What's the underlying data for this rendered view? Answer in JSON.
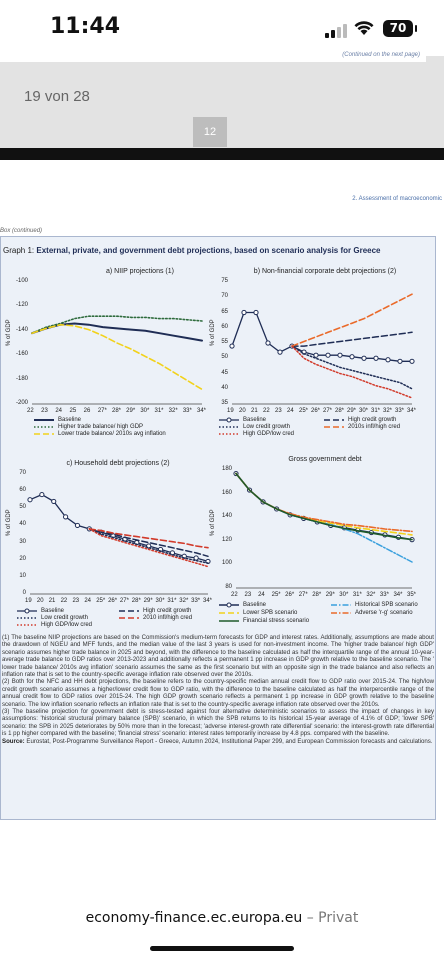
{
  "status": {
    "time": "11:44",
    "battery": "70"
  },
  "viewer": {
    "continued_next": "(Continued on the next page)",
    "page_counter": "19 von 28",
    "page_number": "12"
  },
  "header": {
    "section": "2. Assessment of macroeconomic",
    "box_label": "Box (continued)"
  },
  "graph": {
    "prefix": "Graph 1:",
    "title": "External, private, and government debt projections, based on scenario analysis for Greece"
  },
  "panels": {
    "a": {
      "title": "a) NIIP projections (1)",
      "ylabel": "% of GDP",
      "yticks": [
        "-100",
        "-120",
        "-140",
        "-160",
        "-180",
        "-200"
      ],
      "xticks": [
        "22",
        "23",
        "24",
        "25",
        "26",
        "27*",
        "28*",
        "29*",
        "30*",
        "31*",
        "32*",
        "33*",
        "34*"
      ],
      "legend": [
        "Baseline",
        "Higher trade balance/ high GDP",
        "Lower trade balance/ 2010s avg inflation"
      ]
    },
    "b": {
      "title": "b) Non-financial corporate debt projections (2)",
      "ylabel": "% of GDP",
      "yticks": [
        "75",
        "70",
        "65",
        "60",
        "55",
        "50",
        "45",
        "40",
        "35"
      ],
      "xticks": [
        "19",
        "20",
        "21",
        "22",
        "23",
        "24",
        "25*",
        "26*",
        "27*",
        "28*",
        "29*",
        "30*",
        "31*",
        "32*",
        "33*",
        "34*"
      ],
      "legend": [
        "Baseline",
        "High credit growth",
        "Low credit growth",
        "2010s infl/high cred",
        "High GDP/low cred"
      ]
    },
    "c": {
      "title": "c) Household debt projections (2)",
      "ylabel": "% of GDP",
      "yticks": [
        "70",
        "60",
        "50",
        "40",
        "30",
        "20",
        "10",
        "0"
      ],
      "xticks": [
        "19",
        "20",
        "21",
        "22",
        "23",
        "24",
        "25*",
        "26*",
        "27*",
        "28*",
        "29*",
        "30*",
        "31*",
        "32*",
        "33*",
        "34*"
      ],
      "legend": [
        "Baseline",
        "High credit growth",
        "Low credit growth",
        "2010 infl/high cred",
        "High GDP/low cred"
      ]
    },
    "d": {
      "title": "Gross government debt",
      "ylabel": "% of GDP",
      "yticks": [
        "180",
        "160",
        "140",
        "120",
        "100",
        "80"
      ],
      "xticks": [
        "22",
        "23",
        "24",
        "25*",
        "26*",
        "27*",
        "28*",
        "29*",
        "30*",
        "31*",
        "32*",
        "33*",
        "34*",
        "35*"
      ],
      "legend": [
        "Baseline",
        "Historical SPB scenario",
        "Lower SPB scenario",
        "Adverse 'r-g' scenario",
        "Financial stress scenario"
      ]
    }
  },
  "chart_data": [
    {
      "type": "line",
      "title": "a) NIIP projections (1)",
      "ylabel": "% of GDP",
      "ylim": [
        -200,
        -100
      ],
      "x": [
        "22",
        "23",
        "24",
        "25",
        "26",
        "27*",
        "28*",
        "29*",
        "30*",
        "31*",
        "32*",
        "33*",
        "34*"
      ],
      "series": [
        {
          "name": "Baseline",
          "values": [
            -142,
            -138,
            -135,
            -134,
            -135,
            -137,
            -138,
            -139,
            -140,
            -142,
            -144,
            -146,
            -148
          ]
        },
        {
          "name": "Higher trade balance/ high GDP",
          "values": [
            -142,
            -137,
            -134,
            -130,
            -128,
            -128,
            -128,
            -129,
            -129,
            -130,
            -130,
            -131,
            -132
          ]
        },
        {
          "name": "Lower trade balance/ 2010s avg inflation",
          "values": [
            -142,
            -138,
            -135,
            -136,
            -139,
            -144,
            -150,
            -155,
            -161,
            -167,
            -174,
            -181,
            -188
          ]
        }
      ]
    },
    {
      "type": "line",
      "title": "b) Non-financial corporate debt projections (2)",
      "ylabel": "% of GDP",
      "ylim": [
        35,
        75
      ],
      "x": [
        "19",
        "20",
        "21",
        "22",
        "23",
        "24",
        "25*",
        "26*",
        "27*",
        "28*",
        "29*",
        "30*",
        "31*",
        "32*",
        "33*",
        "34*"
      ],
      "series": [
        {
          "name": "Baseline",
          "values": [
            54,
            65,
            65,
            55,
            52,
            54,
            52,
            51,
            51,
            51,
            50.5,
            50,
            50,
            49.5,
            49,
            49
          ]
        },
        {
          "name": "High credit growth",
          "values": [
            null,
            null,
            null,
            null,
            null,
            54,
            54,
            54.5,
            55,
            55.5,
            56,
            56.5,
            57,
            57.5,
            58,
            58.5
          ]
        },
        {
          "name": "Low credit growth",
          "values": [
            null,
            null,
            null,
            null,
            null,
            54,
            51.5,
            50,
            48.5,
            47,
            46,
            45,
            44,
            43,
            42,
            40
          ]
        },
        {
          "name": "2010s infl/high cred",
          "values": [
            null,
            null,
            null,
            null,
            null,
            54,
            55.5,
            57,
            58.5,
            60,
            61.5,
            63,
            65,
            67,
            69,
            71
          ]
        },
        {
          "name": "High GDP/low cred",
          "values": [
            null,
            null,
            null,
            null,
            null,
            54,
            50,
            48,
            46.5,
            45,
            44,
            42.5,
            41,
            40,
            38.5,
            37
          ]
        }
      ]
    },
    {
      "type": "line",
      "title": "c) Household debt projections (2)",
      "ylabel": "% of GDP",
      "ylim": [
        0,
        70
      ],
      "x": [
        "19",
        "20",
        "21",
        "22",
        "23",
        "24",
        "25*",
        "26*",
        "27*",
        "28*",
        "29*",
        "30*",
        "31*",
        "32*",
        "33*",
        "34*"
      ],
      "series": [
        {
          "name": "Baseline",
          "values": [
            55,
            58,
            54,
            45,
            40,
            38,
            36,
            34,
            32,
            30,
            28,
            26,
            24,
            22,
            21,
            19
          ]
        },
        {
          "name": "High credit growth",
          "values": [
            null,
            null,
            null,
            null,
            null,
            38,
            36,
            35,
            33,
            31.5,
            30,
            28.5,
            27,
            25.5,
            24,
            22
          ]
        },
        {
          "name": "Low credit growth",
          "values": [
            null,
            null,
            null,
            null,
            null,
            38,
            35,
            33,
            31,
            29,
            27,
            25,
            23,
            21,
            19.5,
            18
          ]
        },
        {
          "name": "2010 infl/high cred",
          "values": [
            null,
            null,
            null,
            null,
            null,
            38,
            37,
            35.5,
            34.5,
            33.5,
            32.5,
            31.5,
            30.5,
            29.5,
            28,
            27
          ]
        },
        {
          "name": "High GDP/low cred",
          "values": [
            null,
            null,
            null,
            null,
            null,
            38,
            34,
            32,
            30,
            28,
            26,
            24,
            22,
            20,
            18,
            16
          ]
        }
      ]
    },
    {
      "type": "line",
      "title": "Gross government debt",
      "ylabel": "% of GDP",
      "ylim": [
        80,
        180
      ],
      "x": [
        "22",
        "23",
        "24",
        "25*",
        "26*",
        "27*",
        "28*",
        "29*",
        "30*",
        "31*",
        "32*",
        "33*",
        "34*",
        "35*"
      ],
      "series": [
        {
          "name": "Baseline",
          "values": [
            177,
            163,
            153,
            147,
            142,
            139,
            136,
            133,
            131,
            129,
            127,
            125,
            123,
            121
          ]
        },
        {
          "name": "Historical SPB scenario",
          "values": [
            177,
            163,
            153,
            147,
            142,
            139,
            136,
            134,
            130,
            126,
            120,
            114,
            108,
            102
          ]
        },
        {
          "name": "Lower SPB scenario",
          "values": [
            177,
            163,
            153,
            147,
            142.5,
            140,
            137,
            135,
            133,
            131,
            129.5,
            128,
            126.5,
            125
          ]
        },
        {
          "name": "Adverse 'r-g' scenario",
          "values": [
            177,
            163,
            153,
            147,
            143,
            140,
            138,
            136,
            134,
            133,
            131.5,
            130,
            129,
            128
          ]
        },
        {
          "name": "Financial stress scenario",
          "values": [
            177,
            163,
            153,
            147,
            142,
            139,
            136,
            133,
            130.5,
            128.5,
            126.5,
            124.5,
            122.5,
            121
          ]
        }
      ]
    }
  ],
  "notes": {
    "n1": "(1) The baseline NIIP projections are based on the Commission's medium-term forecasts for GDP and interest rates. Additionally, assumptions are made about the drawdown of NGEU and MFF funds, and the median value of the last 3 years is used for non-investment income. The 'higher trade balance/ high GDP' scenario assumes higher trade balance in 2025 and beyond, with the difference to the baseline calculated as half the interquartile range of the annual 10-year-average trade balance to GDP ratios over 2013-2023 and additionally reflects a permanent 1 pp increase in GDP growth relative to the baseline scenario. The ' lower trade balance/ 2010s avg inflation' scenario assumes the same as the first scenario but with an opposite sign in the trade balance and also reflects an inflation rate that is set to the country-specific average inflation rate observed over the 2010s.",
    "n2": "(2) Both for the NFC and HH debt projections, the baseline refers to the country-specific median annual credit flow to GDP ratio over 2015-24. The high/low credit growth scenario assumes a higher/lower credit flow to GDP ratio, with the difference to the baseline calculated as half the interpercentile range of the annual credit flow to GDP ratios over 2015-24. The high GDP growth scenario reflects a permanent 1 pp increase in GDP growth relative to the baseline scenario. The low inflation scenario reflects an inflation rate that is set to the country-specific average inflation rate observed over the 2010s.",
    "n3": "(3) The baseline projection for government debt is stress-tested against four alternative deterministic scenarios to assess the impact of changes in key assumptions: 'historical structural primary balance (SPB)' scenario, in which the SPB returns to its historical 15-year average of 4.1% of GDP; 'lower SPB' scenario: the SPB in 2025 deteriorates by 50% more than in the forecast; 'adverse interest-growth rate differential' scenario: the interest-growth rate differential is 1 pp higher compared with the baseline; 'financial stress' scenario: interest rates temporarily increase by 4.8 pps. compared with the baseline.",
    "source_label": "Source:",
    "source": "Eurostat, Post-Programme Surveillance Report - Greece, Autumn 2024, Institutional Paper 299, and European Commission forecasts and calculations."
  },
  "browser": {
    "url": "economy-finance.ec.europa.eu",
    "sep": " – ",
    "mode": "Privat"
  },
  "colors": {
    "navy": "#1f2d55",
    "blue": "#2f4f9a",
    "green": "#2e6b3c",
    "yellow": "#f2d21b",
    "orange": "#ea6a2a",
    "red": "#d23a2a",
    "lightblue": "#3aa0dd",
    "darkgreen": "#1e5a2a",
    "bg": "#ecf1f8"
  }
}
